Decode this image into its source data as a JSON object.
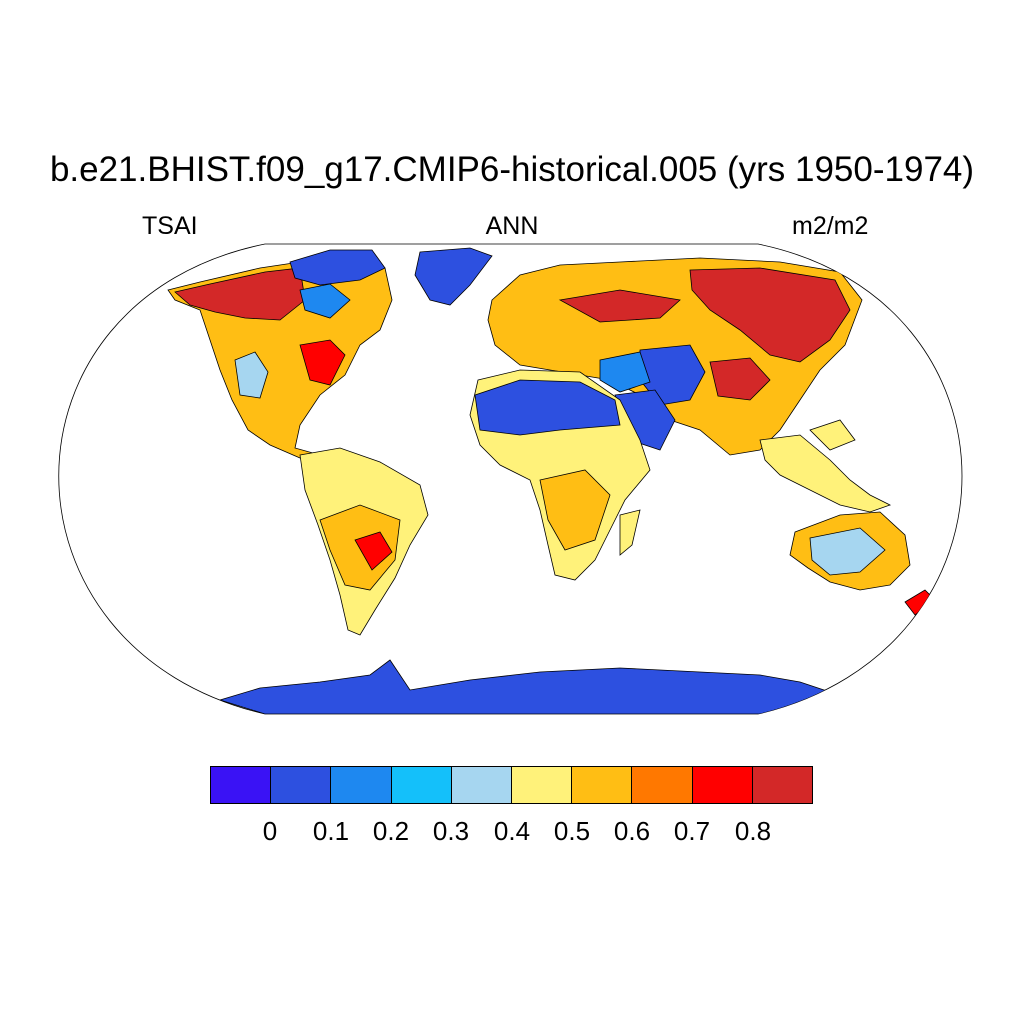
{
  "title": "b.e21.BHIST.f09_g17.CMIP6-historical.005 (yrs 1950-1974)",
  "subtitle": {
    "left": "TSAI",
    "center": "ANN",
    "right": "m2/m2"
  },
  "colorbar": {
    "colors": [
      "#3a12f5",
      "#2d50e0",
      "#1e88f0",
      "#14c0fa",
      "#a6d6f0",
      "#fff27a",
      "#ffbe14",
      "#ff7800",
      "#ff0000",
      "#d32828"
    ],
    "labels": [
      "0",
      "0.1",
      "0.2",
      "0.3",
      "0.4",
      "0.5",
      "0.6",
      "0.7",
      "0.8"
    ]
  },
  "palette": {
    "ocean": "#ffffff",
    "antarctica": "#2d50e0",
    "greenland": "#2d50e0",
    "sahara": "#2d50e0",
    "boreal": "#d32828",
    "temperate": "#ffbe14",
    "tropics": "#fff27a",
    "arid": "#a6d6f0",
    "red": "#ff0000",
    "orange": "#ff7800"
  }
}
